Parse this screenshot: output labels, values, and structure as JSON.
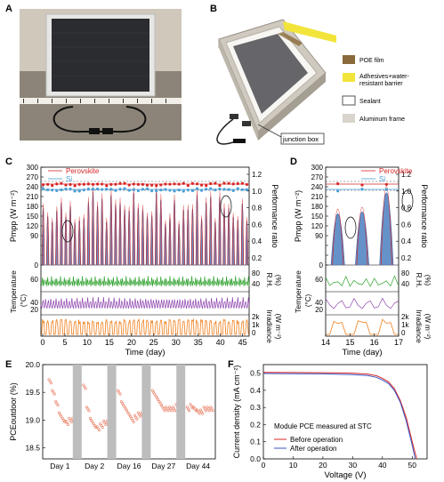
{
  "panel_labels": [
    "A",
    "B",
    "C",
    "D",
    "E",
    "F"
  ],
  "diagram_b": {
    "legend": [
      {
        "label": "POE film",
        "color": "#8a6a3a"
      },
      {
        "label": "Adhesives+water-resistant barrier",
        "color": "#f2e43a"
      },
      {
        "label": "Sealant",
        "color": "#ffffff"
      },
      {
        "label": "Aluminum frame",
        "color": "#d9d4cc"
      }
    ],
    "callout": "junction box"
  },
  "panel_c": {
    "legend": [
      "Perovskite",
      "Si"
    ],
    "ylabel_left": "P",
    "ylabel_left_sub": "mpp",
    "ylabel_left_unit": " (W m",
    "ylabel_right": "Performance ratio",
    "yticks_left": [
      "0",
      "30",
      "60",
      "90",
      "120",
      "150",
      "180",
      "210",
      "240",
      "270",
      "300"
    ],
    "yticks_right": [
      "0.2",
      "0.4",
      "0.6",
      "0.8",
      "1.0",
      "1.2"
    ],
    "temp_ticks": [
      "20",
      "40",
      "60"
    ],
    "rh_ticks": [
      "40",
      "80"
    ],
    "irr_ticks": [
      "0",
      "1k",
      "2k"
    ],
    "temp_label": "Temperature",
    "temp_unit": "(°C)",
    "rh_label": "R.H.",
    "rh_unit": "(%)",
    "irr_label": "Irradiance",
    "irr_unit": "(W m",
    "xticks": [
      "0",
      "5",
      "10",
      "15",
      "20",
      "25",
      "30",
      "35",
      "40",
      "45"
    ],
    "xlabel": "Time (day)"
  },
  "panel_d": {
    "legend": [
      "Perovskite",
      "Si"
    ],
    "ylabel_left": "P",
    "ylabel_left_sub": "mpp",
    "ylabel_left_unit": " (W m",
    "ylabel_right": "Performance ratio",
    "yticks_left": [
      "0",
      "30",
      "60",
      "90",
      "120",
      "150",
      "180",
      "210",
      "240",
      "270",
      "300"
    ],
    "yticks_right": [
      "0.2",
      "0.4",
      "0.6",
      "0.8",
      "1.0",
      "1.2"
    ],
    "temp_ticks": [
      "20",
      "40",
      "60"
    ],
    "rh_ticks": [
      "40",
      "80"
    ],
    "irr_ticks": [
      "0",
      "1k",
      "2k"
    ],
    "temp_label": "Temperature",
    "temp_unit": "(°C)",
    "rh_label": "R.H.",
    "rh_unit": "(%)",
    "irr_label": "Irradiance",
    "irr_unit": "(W m",
    "xticks": [
      "14",
      "15",
      "16",
      "17"
    ],
    "xlabel": "Time (day)"
  },
  "panel_e": {
    "ylabel": "PCE",
    "ylabel_sub": "outdoor",
    "ylabel_unit": " (%)",
    "yticks": [
      "18.5",
      "19.0",
      "19.5",
      "20.0"
    ],
    "days": [
      "Day 1",
      "Day 2",
      "Day 16",
      "Day 27",
      "Day 44"
    ]
  },
  "panel_f": {
    "ylabel": "Current density (mA cm",
    "xlabel": "Voltage (V)",
    "yticks": [
      "0.0",
      "0.1",
      "0.2",
      "0.3",
      "0.4",
      "0.5"
    ],
    "xticks": [
      "0",
      "10",
      "20",
      "30",
      "40",
      "50"
    ],
    "legend_title": "Module PCE measured at STC",
    "legend": [
      {
        "label": "Before operation",
        "color": "#d62728"
      },
      {
        "label": "After operation",
        "color": "#3b57c4"
      }
    ]
  },
  "chart_data": [
    {
      "type": "line",
      "panel": "F",
      "xlabel": "Voltage (V)",
      "ylabel": "Current density (mA cm-2)",
      "xlim": [
        0,
        55
      ],
      "ylim": [
        0,
        0.55
      ],
      "series": [
        {
          "name": "Before operation",
          "x": [
            0,
            10,
            20,
            30,
            35,
            38,
            40,
            42,
            44,
            46,
            48,
            50,
            51.5
          ],
          "y": [
            0.505,
            0.504,
            0.503,
            0.5,
            0.495,
            0.485,
            0.47,
            0.45,
            0.41,
            0.34,
            0.24,
            0.1,
            0
          ]
        },
        {
          "name": "After operation",
          "x": [
            0,
            10,
            20,
            30,
            35,
            38,
            40,
            42,
            44,
            46,
            48,
            50,
            51
          ],
          "y": [
            0.498,
            0.497,
            0.496,
            0.492,
            0.486,
            0.476,
            0.46,
            0.44,
            0.4,
            0.33,
            0.22,
            0.08,
            0
          ]
        }
      ]
    },
    {
      "type": "scatter",
      "panel": "E",
      "ylabel": "PCE outdoor (%)",
      "ylim": [
        18.3,
        20.0
      ],
      "categories": [
        "Day 1",
        "Day 2",
        "Day 16",
        "Day 27",
        "Day 44"
      ],
      "series": [
        {
          "values": [
            [
              19.7,
              19.5,
              19.3,
              19.1,
              19.0,
              18.95,
              19.0,
              19.0
            ],
            [
              19.6,
              19.2,
              19.0,
              18.9,
              18.85,
              18.9,
              18.95,
              18.95
            ],
            [
              19.5,
              19.3,
              19.2,
              19.1,
              19.0,
              19.05,
              19.1,
              19.1
            ],
            [
              19.5,
              19.4,
              19.3,
              19.2,
              19.2,
              19.2,
              19.2,
              19.25
            ],
            [
              19.2,
              19.25,
              19.2,
              19.15,
              19.15,
              19.2,
              19.2,
              19.2
            ]
          ]
        }
      ]
    }
  ]
}
